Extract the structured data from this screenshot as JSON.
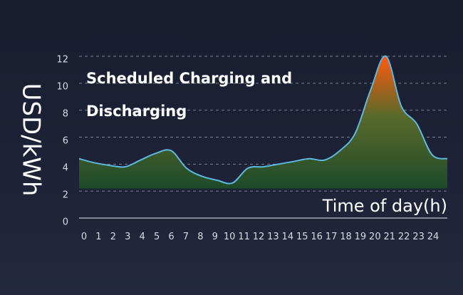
{
  "chart_data": {
    "type": "area",
    "title_lines": [
      "Scheduled Charging and",
      "Discharging"
    ],
    "xlabel": "Time of day(h)",
    "ylabel": "USD/kWh",
    "x": [
      0,
      1,
      2,
      3,
      4,
      5,
      6,
      7,
      8,
      9,
      10,
      11,
      12,
      13,
      14,
      15,
      16,
      17,
      18,
      19,
      20,
      21,
      22,
      23,
      24
    ],
    "y": [
      4.4,
      4.1,
      3.9,
      3.8,
      4.3,
      4.8,
      5.0,
      3.7,
      3.1,
      2.8,
      2.6,
      3.7,
      3.8,
      4.0,
      4.2,
      4.4,
      4.3,
      5.0,
      6.3,
      9.5,
      12.0,
      8.3,
      7.0,
      4.7,
      4.4
    ],
    "x_ticks": [
      "0",
      "1",
      "2",
      "3",
      "4",
      "5",
      "6",
      "7",
      "8",
      "9",
      "10",
      "11",
      "12",
      "13",
      "14",
      "15",
      "16",
      "17",
      "18",
      "19",
      "20",
      "21",
      "22",
      "23",
      "24"
    ],
    "y_ticks": [
      "0",
      "2",
      "4",
      "6",
      "8",
      "10",
      "12"
    ],
    "xlim": [
      0,
      24
    ],
    "ylim": [
      0,
      12
    ],
    "grid": true,
    "colors": {
      "line": "#5fb8e0",
      "fill_low": "#1e4a2a",
      "fill_mid": "#5a6a2a",
      "fill_high": "#ff5a10"
    }
  }
}
